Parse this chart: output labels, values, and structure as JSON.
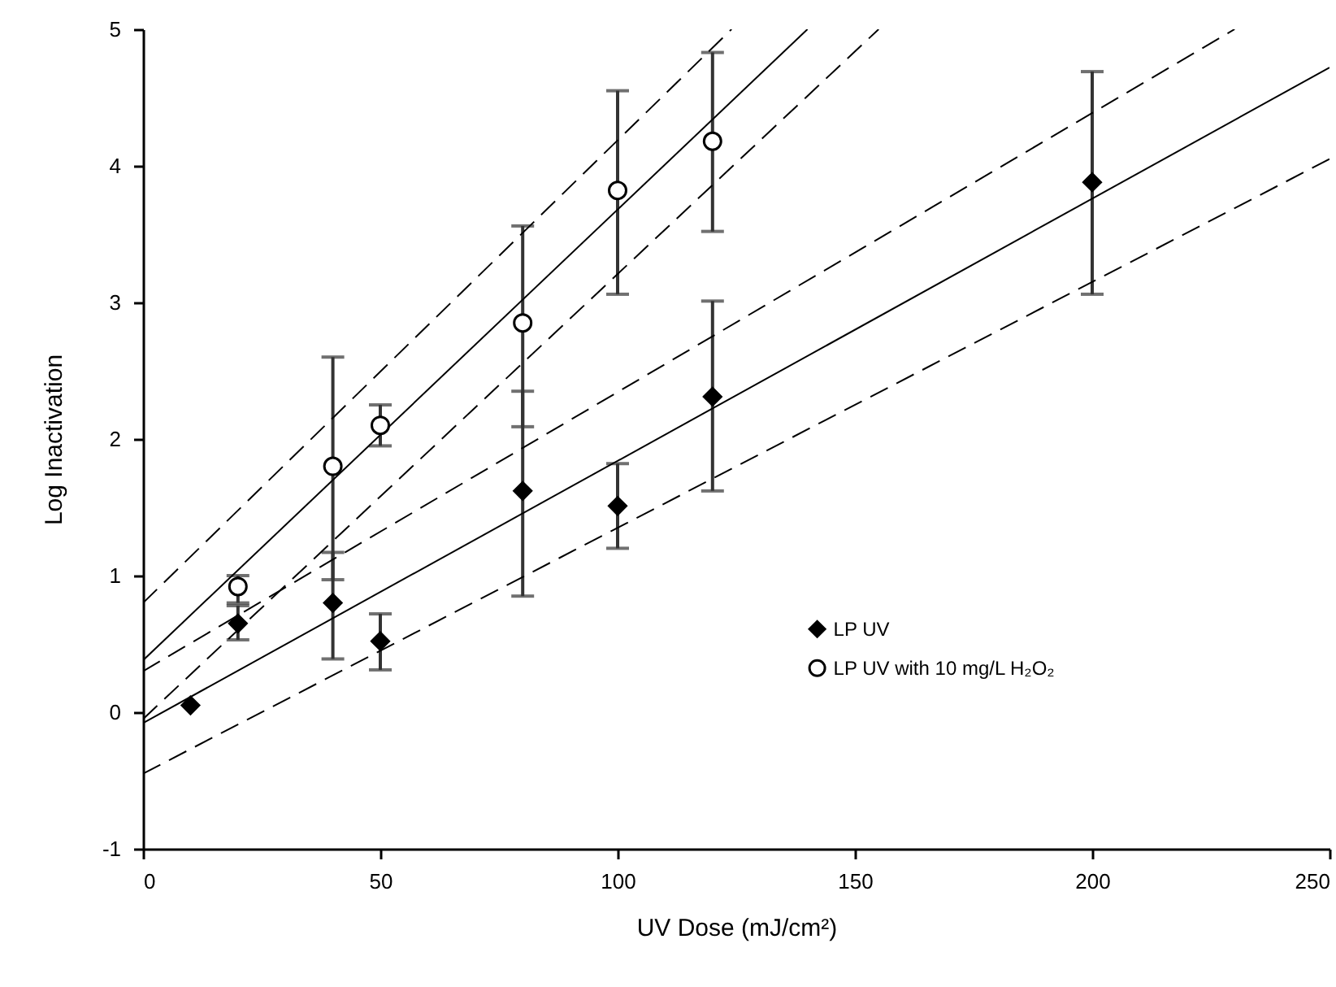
{
  "chart_data": {
    "type": "scatter",
    "xlabel": "UV Dose (mJ/cm²)",
    "ylabel": "Log Inactivation",
    "xlim": [
      0,
      250
    ],
    "xticks": [
      0,
      50,
      100,
      150,
      200,
      250
    ],
    "ylim": [
      -1,
      5
    ],
    "yticks": [
      -1,
      0,
      1,
      2,
      3,
      4,
      5
    ],
    "grid": false,
    "legend": "right",
    "series": [
      {
        "name": "LP UV",
        "marker": "diamond",
        "color": "#000000",
        "x": [
          10,
          20,
          40,
          50,
          80,
          100,
          120,
          200
        ],
        "values": [
          0.05,
          0.65,
          0.8,
          0.52,
          1.62,
          1.51,
          2.31,
          3.88
        ],
        "errors": [
          null,
          [
            0.53,
            0.78
          ],
          [
            0.39,
            1.17
          ],
          [
            0.31,
            0.72
          ],
          [
            0.85,
            2.35
          ],
          [
            1.2,
            1.82
          ],
          [
            1.62,
            3.01
          ],
          [
            3.06,
            4.69
          ]
        ]
      },
      {
        "name": "LP UV with 10 mg/L H₂O₂",
        "marker": "circle",
        "color": "#ffffff",
        "x": [
          20,
          40,
          50,
          80,
          100,
          120
        ],
        "values": [
          0.92,
          1.8,
          2.1,
          2.85,
          3.82,
          4.18
        ],
        "errors": [
          [
            0.8,
            1.0
          ],
          [
            0.97,
            2.6
          ],
          [
            1.95,
            2.25
          ],
          [
            2.09,
            3.56
          ],
          [
            3.06,
            4.55
          ],
          [
            3.52,
            4.83
          ]
        ]
      },
      {
        "type": "line",
        "line_style": "solid",
        "color": "#000000",
        "x": [
          0,
          250
        ],
        "values": [
          -0.08,
          4.72
        ]
      },
      {
        "type": "line",
        "line_style": "dashed",
        "color": "#000000",
        "x": [
          0,
          230
        ],
        "values": [
          0.3,
          5
        ]
      },
      {
        "type": "line",
        "line_style": "dashed",
        "color": "#000000",
        "x": [
          0,
          250
        ],
        "values": [
          -0.45,
          4.05
        ]
      },
      {
        "type": "line",
        "line_style": "solid",
        "color": "#000000",
        "x": [
          0,
          140
        ],
        "values": [
          0.38,
          5
        ]
      },
      {
        "type": "line",
        "line_style": "dashed",
        "color": "#000000",
        "x": [
          0,
          124
        ],
        "values": [
          0.8,
          5
        ]
      },
      {
        "type": "line",
        "line_style": "dashed",
        "color": "#000000",
        "x": [
          0,
          155
        ],
        "values": [
          -0.05,
          5
        ]
      }
    ]
  }
}
